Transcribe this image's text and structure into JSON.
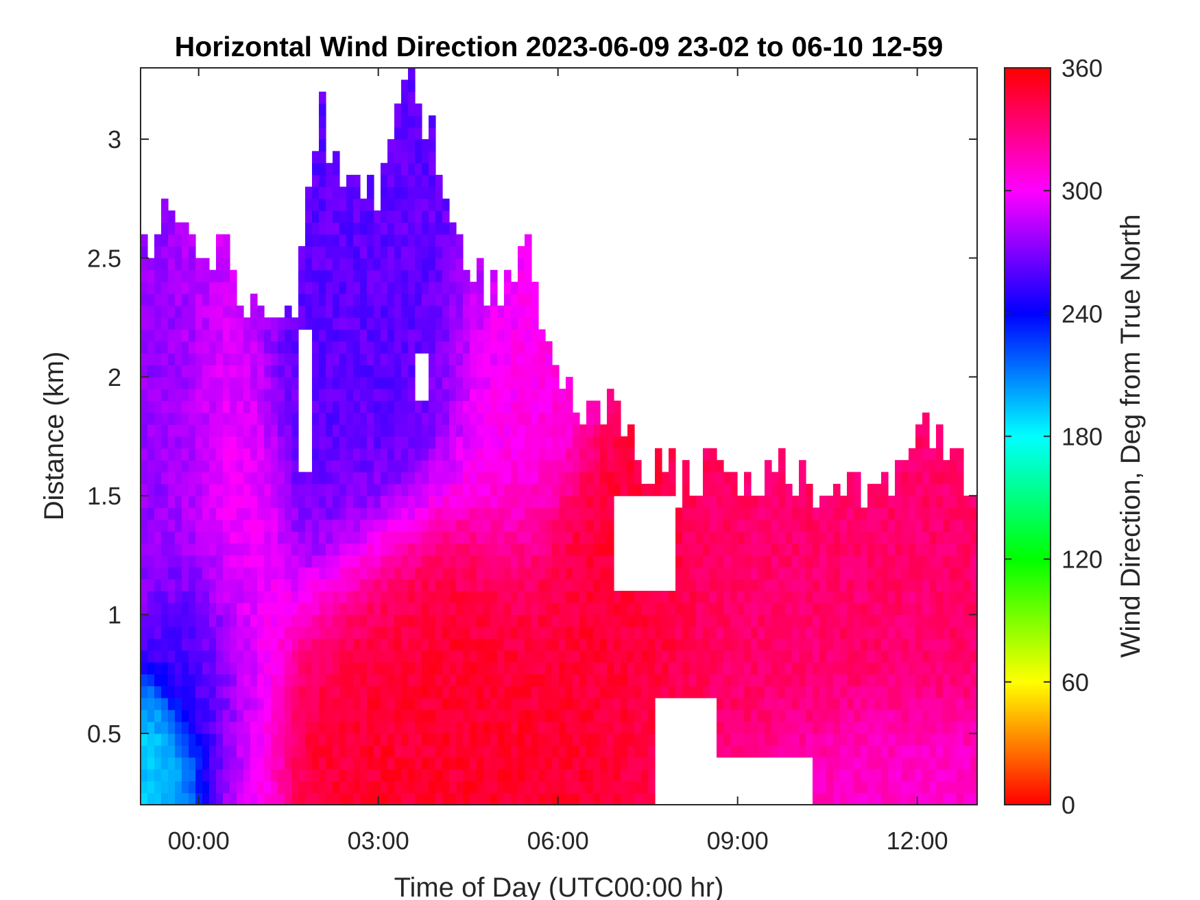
{
  "chart_data": {
    "type": "heatmap",
    "title": "Horizontal Wind Direction 2023-06-09 23-02 to 06-10 12-59",
    "xlabel": "Time of Day (UTC00:00 hr)",
    "ylabel": "Distance (km)",
    "colorbar_label": "Wind Direction, Deg from True North",
    "x_range_hours": [
      -0.97,
      13.0
    ],
    "y_range_km": [
      0.2,
      3.3
    ],
    "x_ticks": [
      {
        "value": 0,
        "label": "00:00"
      },
      {
        "value": 3,
        "label": "03:00"
      },
      {
        "value": 6,
        "label": "06:00"
      },
      {
        "value": 9,
        "label": "09:00"
      },
      {
        "value": 12,
        "label": "12:00"
      }
    ],
    "y_ticks": [
      {
        "value": 0.5,
        "label": "0.5"
      },
      {
        "value": 1,
        "label": "1"
      },
      {
        "value": 1.5,
        "label": "1.5"
      },
      {
        "value": 2,
        "label": "2"
      },
      {
        "value": 2.5,
        "label": "2.5"
      },
      {
        "value": 3,
        "label": "3"
      }
    ],
    "colorbar_range": [
      0,
      360
    ],
    "colorbar_ticks": [
      {
        "value": 0,
        "label": "0"
      },
      {
        "value": 60,
        "label": "60"
      },
      {
        "value": 120,
        "label": "120"
      },
      {
        "value": 180,
        "label": "180"
      },
      {
        "value": 240,
        "label": "240"
      },
      {
        "value": 300,
        "label": "300"
      },
      {
        "value": 360,
        "label": "360"
      }
    ],
    "colormap": "hsv",
    "grid": false,
    "missing_data_color": "#ffffff",
    "data_top_km_profile": [
      {
        "t": -0.97,
        "top": 2.55
      },
      {
        "t": -0.5,
        "top": 2.75
      },
      {
        "t": 0.0,
        "top": 2.6
      },
      {
        "t": 0.5,
        "top": 2.5
      },
      {
        "t": 1.0,
        "top": 2.2
      },
      {
        "t": 1.5,
        "top": 2.2
      },
      {
        "t": 2.0,
        "top": 3.1
      },
      {
        "t": 2.5,
        "top": 2.9
      },
      {
        "t": 3.0,
        "top": 2.8
      },
      {
        "t": 3.5,
        "top": 3.2
      },
      {
        "t": 4.0,
        "top": 3.0
      },
      {
        "t": 4.5,
        "top": 2.5
      },
      {
        "t": 5.0,
        "top": 2.3
      },
      {
        "t": 5.5,
        "top": 2.55
      },
      {
        "t": 6.0,
        "top": 2.0
      },
      {
        "t": 6.5,
        "top": 1.85
      },
      {
        "t": 7.0,
        "top": 1.9
      },
      {
        "t": 7.5,
        "top": 1.65
      },
      {
        "t": 8.0,
        "top": 1.55
      },
      {
        "t": 8.5,
        "top": 1.6
      },
      {
        "t": 9.0,
        "top": 1.5
      },
      {
        "t": 9.5,
        "top": 1.65
      },
      {
        "t": 10.0,
        "top": 1.6
      },
      {
        "t": 10.5,
        "top": 1.5
      },
      {
        "t": 11.0,
        "top": 1.5
      },
      {
        "t": 11.5,
        "top": 1.55
      },
      {
        "t": 12.0,
        "top": 1.75
      },
      {
        "t": 12.5,
        "top": 1.65
      },
      {
        "t": 13.0,
        "top": 1.6
      }
    ],
    "data_gaps": [
      {
        "t_start": 1.7,
        "t_end": 1.9,
        "d_start": 1.6,
        "d_end": 2.2
      },
      {
        "t_start": 3.6,
        "t_end": 3.8,
        "d_start": 1.9,
        "d_end": 2.1
      },
      {
        "t_start": 6.9,
        "t_end": 8.0,
        "d_start": 1.1,
        "d_end": 1.5
      },
      {
        "t_start": 7.6,
        "t_end": 8.6,
        "d_start": 0.2,
        "d_end": 0.65
      },
      {
        "t_start": 8.6,
        "t_end": 10.2,
        "d_start": 0.2,
        "d_end": 0.4
      }
    ],
    "direction_regions_deg": [
      {
        "t_start": -0.97,
        "t_end": 0.3,
        "d_start": 1.2,
        "d_end": 2.5,
        "direction": 275
      },
      {
        "t_start": 0.0,
        "t_end": 1.0,
        "d_start": 0.4,
        "d_end": 2.5,
        "direction": 305
      },
      {
        "t_start": -0.3,
        "t_end": 0.5,
        "d_start": 0.4,
        "d_end": 1.2,
        "direction": 245
      },
      {
        "t_start": -0.97,
        "t_end": -0.2,
        "d_start": 0.2,
        "d_end": 0.5,
        "direction": 190
      },
      {
        "t_start": 1.0,
        "t_end": 4.5,
        "d_start": 1.4,
        "d_end": 3.2,
        "direction": 262
      },
      {
        "t_start": 2.5,
        "t_end": 6.0,
        "d_start": 0.2,
        "d_end": 1.3,
        "direction": 350
      },
      {
        "t_start": 4.5,
        "t_end": 6.0,
        "d_start": 1.3,
        "d_end": 2.5,
        "direction": 305
      },
      {
        "t_start": 6.0,
        "t_end": 8.0,
        "d_start": 0.7,
        "d_end": 1.5,
        "direction": 348
      },
      {
        "t_start": 8.0,
        "t_end": 13.0,
        "d_start": 0.5,
        "d_end": 1.6,
        "direction": 335
      },
      {
        "t_start": 10.0,
        "t_end": 13.0,
        "d_start": 0.2,
        "d_end": 0.5,
        "direction": 310
      }
    ]
  }
}
